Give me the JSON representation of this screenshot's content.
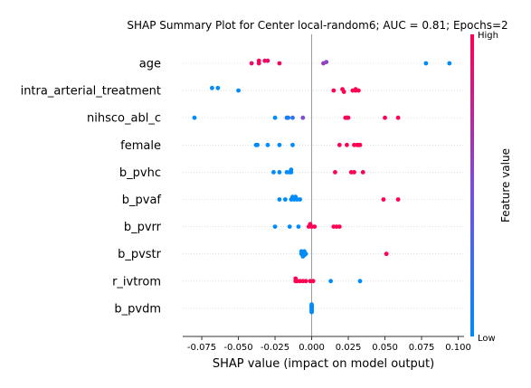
{
  "chart_data": {
    "type": "scatter",
    "title": "SHAP Summary Plot for Center local-random6; AUC = 0.81; Epochs=2",
    "xlabel": "SHAP value (impact on model output)",
    "xlim": [
      -0.088,
      0.104
    ],
    "xticks": [
      "-0.075",
      "-0.050",
      "-0.025",
      "0.000",
      "0.025",
      "0.050",
      "0.075",
      "0.100"
    ],
    "xtick_values": [
      -0.075,
      -0.05,
      -0.025,
      0.0,
      0.025,
      0.05,
      0.075,
      0.1
    ],
    "colorbar": {
      "label": "Feature value",
      "high": "High",
      "low": "Low",
      "high_color": "#ff0052",
      "low_color": "#008bfb"
    },
    "features": [
      {
        "name": "age",
        "points": [
          [
            -0.036,
            1.0,
            0.02
          ],
          [
            -0.041,
            0.9,
            0
          ],
          [
            -0.036,
            0.95,
            0
          ],
          [
            -0.032,
            0.92,
            0.02
          ],
          [
            -0.03,
            0.93,
            0.02
          ],
          [
            -0.022,
            0.95,
            0
          ],
          [
            0.008,
            0.6,
            0
          ],
          [
            0.01,
            0.55,
            0.01
          ],
          [
            0.078,
            0.0,
            0
          ],
          [
            0.094,
            0.0,
            0
          ]
        ]
      },
      {
        "name": "intra_arterial_treatment",
        "points": [
          [
            -0.068,
            0.0,
            0.02
          ],
          [
            -0.064,
            0.0,
            0.02
          ],
          [
            -0.05,
            0.0,
            0
          ],
          [
            0.015,
            1.0,
            0
          ],
          [
            0.021,
            1.0,
            0.01
          ],
          [
            0.022,
            1.0,
            -0.01
          ],
          [
            0.028,
            1.0,
            0
          ],
          [
            0.03,
            1.0,
            0
          ],
          [
            0.03,
            1.0,
            0.01
          ],
          [
            0.032,
            1.0,
            0
          ]
        ]
      },
      {
        "name": "nihsco_abl_c",
        "points": [
          [
            -0.08,
            0.0,
            0
          ],
          [
            -0.025,
            0.0,
            0
          ],
          [
            -0.017,
            0.15,
            0
          ],
          [
            -0.016,
            0.1,
            0
          ],
          [
            -0.013,
            0.2,
            0
          ],
          [
            -0.006,
            0.5,
            0
          ],
          [
            0.023,
            0.95,
            0
          ],
          [
            0.024,
            1.0,
            0
          ],
          [
            0.025,
            0.95,
            0
          ],
          [
            0.05,
            1.0,
            0
          ],
          [
            0.059,
            1.0,
            0
          ]
        ]
      },
      {
        "name": "female",
        "points": [
          [
            -0.038,
            0.0,
            0
          ],
          [
            -0.037,
            0.0,
            0
          ],
          [
            -0.03,
            0.0,
            0
          ],
          [
            -0.022,
            0.0,
            0
          ],
          [
            -0.013,
            0.0,
            0
          ],
          [
            0.019,
            1.0,
            0
          ],
          [
            0.024,
            1.0,
            0
          ],
          [
            0.029,
            1.0,
            0
          ],
          [
            0.031,
            1.0,
            0
          ],
          [
            0.032,
            1.0,
            0
          ],
          [
            0.033,
            1.0,
            0
          ]
        ]
      },
      {
        "name": "b_pvhc",
        "points": [
          [
            -0.026,
            0.0,
            0
          ],
          [
            -0.022,
            0.0,
            0
          ],
          [
            -0.017,
            0.0,
            0
          ],
          [
            -0.015,
            0.0,
            0
          ],
          [
            -0.014,
            0.0,
            0
          ],
          [
            -0.014,
            0.0,
            0.02
          ],
          [
            0.016,
            1.0,
            0
          ],
          [
            0.027,
            1.0,
            0
          ],
          [
            0.029,
            1.0,
            0
          ],
          [
            0.035,
            1.0,
            0
          ]
        ]
      },
      {
        "name": "b_pvaf",
        "points": [
          [
            -0.022,
            0.0,
            0
          ],
          [
            -0.018,
            0.0,
            0
          ],
          [
            -0.014,
            0.0,
            0
          ],
          [
            -0.012,
            0.0,
            0
          ],
          [
            -0.01,
            0.0,
            0
          ],
          [
            -0.008,
            0.0,
            0
          ],
          [
            -0.013,
            0.0,
            0.02
          ],
          [
            -0.011,
            0.0,
            0.02
          ],
          [
            0.049,
            1.0,
            0
          ],
          [
            0.059,
            1.0,
            0
          ]
        ]
      },
      {
        "name": "b_pvrr",
        "points": [
          [
            -0.025,
            0.0,
            0
          ],
          [
            -0.015,
            0.0,
            0
          ],
          [
            -0.009,
            0.0,
            0
          ],
          [
            -0.002,
            0.95,
            0
          ],
          [
            0.0,
            1.0,
            0
          ],
          [
            0.002,
            1.0,
            0
          ],
          [
            -0.001,
            1.0,
            0.02
          ],
          [
            0.015,
            1.0,
            0
          ],
          [
            0.017,
            1.0,
            0
          ],
          [
            0.019,
            1.0,
            0
          ]
        ]
      },
      {
        "name": "b_pvstr",
        "points": [
          [
            -0.007,
            0.0,
            0
          ],
          [
            -0.006,
            0.0,
            0
          ],
          [
            -0.005,
            0.0,
            0
          ],
          [
            -0.004,
            0.0,
            0
          ],
          [
            -0.007,
            0.0,
            0.02
          ],
          [
            -0.005,
            0.0,
            0.02
          ],
          [
            -0.006,
            0.0,
            -0.02
          ],
          [
            -0.005,
            0.0,
            -0.01
          ],
          [
            -0.006,
            0.0,
            0.01
          ],
          [
            0.051,
            1.0,
            0
          ]
        ]
      },
      {
        "name": "r_ivtrom",
        "points": [
          [
            -0.011,
            1.0,
            0
          ],
          [
            -0.01,
            1.0,
            0
          ],
          [
            -0.008,
            1.0,
            0
          ],
          [
            -0.006,
            1.0,
            0
          ],
          [
            -0.004,
            1.0,
            0
          ],
          [
            -0.001,
            1.0,
            0
          ],
          [
            0.001,
            1.0,
            0
          ],
          [
            -0.011,
            1.0,
            0.02
          ],
          [
            0.013,
            0.0,
            0
          ],
          [
            0.033,
            0.0,
            0
          ]
        ]
      },
      {
        "name": "b_pvdm",
        "points": [
          [
            0.0,
            0.0,
            0
          ],
          [
            0.0,
            0.0,
            0.01
          ],
          [
            0.0,
            0.0,
            0.02
          ],
          [
            0.0,
            0.0,
            0.03
          ],
          [
            0.0,
            0.0,
            -0.01
          ],
          [
            0.0,
            0.0,
            -0.02
          ],
          [
            0.0,
            0.0,
            -0.03
          ],
          [
            0.0,
            0.0,
            0.015
          ],
          [
            0.0,
            0.0,
            -0.015
          ]
        ]
      }
    ]
  }
}
